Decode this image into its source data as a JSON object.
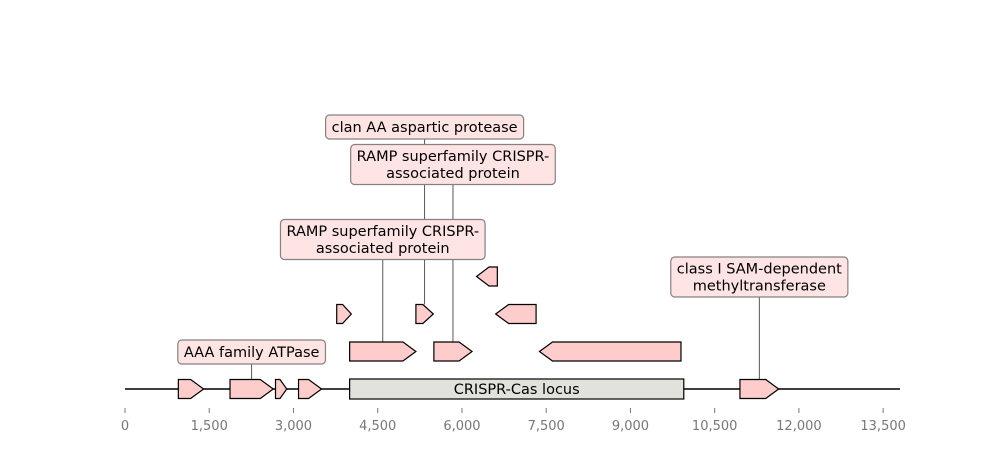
{
  "axis": {
    "min": 0,
    "max": 13800,
    "ticks": [
      0,
      1500,
      3000,
      4500,
      6000,
      7500,
      9000,
      10500,
      12000,
      13500
    ],
    "tick_labels": [
      "0",
      "1,500",
      "3,000",
      "4,500",
      "6,000",
      "7,500",
      "9,000",
      "10,500",
      "12,000",
      "13,500"
    ]
  },
  "colors": {
    "feature_fill": "#ffcccc",
    "feature_stroke": "#000000",
    "locus_fill": "#e2e2dc",
    "label_fill": "#ffe4e4",
    "label_stroke": "#888080",
    "axis_text": "#777777"
  },
  "locus": {
    "label": "CRISPR-Cas locus",
    "start": 4000,
    "end": 9950
  },
  "features": [
    {
      "id": "f1",
      "start": 950,
      "end": 1400,
      "strand": 1,
      "level": 0
    },
    {
      "id": "f2",
      "start": 1870,
      "end": 2640,
      "strand": 1,
      "level": 0,
      "label": "AAA family ATPase",
      "label_level": 0
    },
    {
      "id": "f3",
      "start": 2680,
      "end": 2880,
      "strand": 1,
      "level": 0
    },
    {
      "id": "f4",
      "start": 3090,
      "end": 3500,
      "strand": 1,
      "level": 0
    },
    {
      "id": "f5",
      "start": 4000,
      "end": 5180,
      "strand": 1,
      "level": 1,
      "label": "RAMP superfamily CRISPR-associated protein",
      "label_level": 3
    },
    {
      "id": "f6",
      "start": 5500,
      "end": 6180,
      "strand": 1,
      "level": 1,
      "label": "RAMP superfamily CRISPR-associated protein",
      "label_level": 5
    },
    {
      "id": "f7",
      "start": 7380,
      "end": 9900,
      "strand": -1,
      "level": 1
    },
    {
      "id": "f8",
      "start": 3770,
      "end": 4030,
      "strand": 1,
      "level": 2
    },
    {
      "id": "f9",
      "start": 5180,
      "end": 5490,
      "strand": 1,
      "level": 2,
      "label": "clan AA aspartic protease",
      "label_level": 6
    },
    {
      "id": "f10",
      "start": 6600,
      "end": 7320,
      "strand": -1,
      "level": 2
    },
    {
      "id": "f11",
      "start": 6260,
      "end": 6630,
      "strand": -1,
      "level": 3
    },
    {
      "id": "f12",
      "start": 10950,
      "end": 11640,
      "strand": 1,
      "level": 0,
      "label": "class I SAM-dependent methyltransferase",
      "label_level": 2
    }
  ],
  "label_text": {
    "f2": [
      "AAA family ATPase"
    ],
    "f5": [
      "RAMP superfamily CRISPR-",
      "associated protein"
    ],
    "f6": [
      "RAMP superfamily CRISPR-",
      "associated protein"
    ],
    "f9": [
      "clan AA aspartic protease"
    ],
    "f12": [
      "class I SAM-dependent",
      "methyltransferase"
    ]
  }
}
